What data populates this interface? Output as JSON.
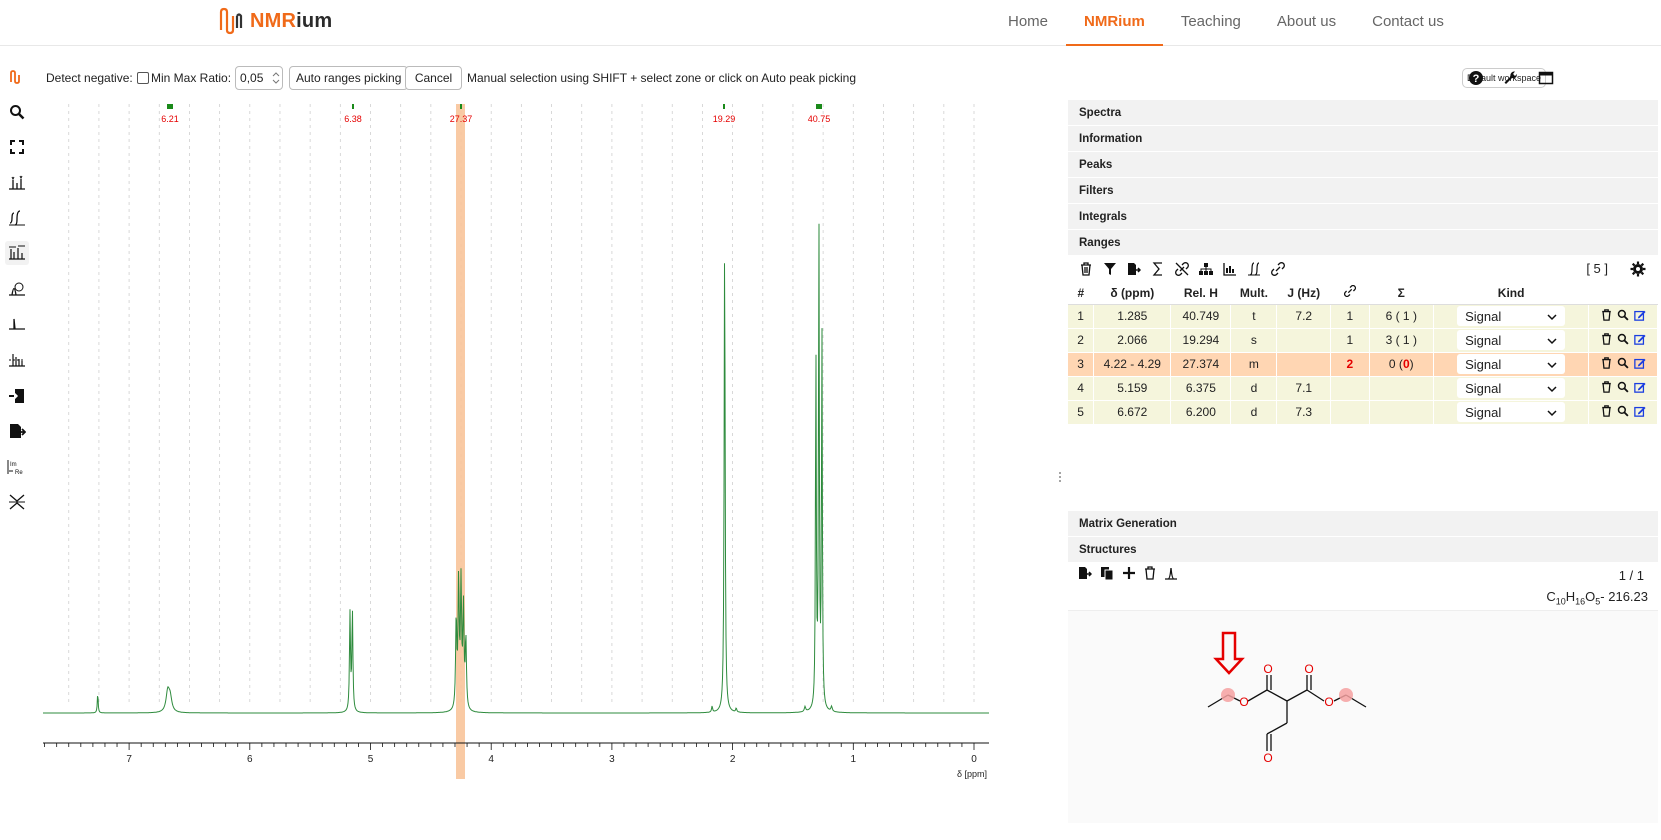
{
  "nav": {
    "logo_text": "NMRium",
    "links": [
      "Home",
      "NMRium",
      "Teaching",
      "About us",
      "Contact us"
    ],
    "active": "NMRium"
  },
  "toolbar": {
    "detect_negative_label": "Detect negative:",
    "min_max_ratio_label": "Min Max Ratio:",
    "min_max_ratio_value": "0,05",
    "auto_ranges_label": "Auto ranges picking",
    "cancel_label": "Cancel",
    "hint": "Manual selection using SHIFT + select zone or click on Auto peak picking",
    "workspace_label": "Default workspace"
  },
  "left_tools": [
    "zoom-icon",
    "fullscreen-icon",
    "peak-picking-icon",
    "integral-icon",
    "range-picking-icon",
    "phase-correction-icon",
    "baseline-correction-icon",
    "multiplet-analysis-icon",
    "import-icon",
    "export-icon",
    "real-imaginary-icon",
    "exclusion-zones-icon"
  ],
  "spectrum": {
    "range_labels": [
      "6.21",
      "6.38",
      "27.37",
      "19.29",
      "40.75"
    ],
    "x_ticks": [
      "7",
      "6",
      "5",
      "4",
      "3",
      "2",
      "1",
      "0"
    ],
    "axis_unit": "δ [ppm]",
    "colors": {
      "line": "#2e8b3d",
      "highlight": "#f8c49a",
      "label": "#e50000",
      "marker": "#1a8a1a"
    }
  },
  "panels": {
    "sections_top": [
      "Spectra",
      "Information",
      "Peaks",
      "Filters",
      "Integrals",
      "Ranges"
    ],
    "range_count": "[ 5 ]",
    "columns": [
      "#",
      "δ (ppm)",
      "Rel. H",
      "Mult.",
      "J (Hz)",
      "🔗",
      "Σ",
      "Kind"
    ],
    "rows": [
      {
        "num": "1",
        "shift": "1.285",
        "relh": "40.749",
        "mult": "t",
        "j": "7.2",
        "link": "1",
        "sigma": "6 ( 1 )",
        "kind": "Signal"
      },
      {
        "num": "2",
        "shift": "2.066",
        "relh": "19.294",
        "mult": "s",
        "j": "",
        "link": "1",
        "sigma": "3 ( 1 )",
        "kind": "Signal"
      },
      {
        "num": "3",
        "shift": "4.22 - 4.29",
        "relh": "27.374",
        "mult": "m",
        "j": "",
        "link": "2",
        "sigma": "0 (0)",
        "kind": "Signal"
      },
      {
        "num": "4",
        "shift": "5.159",
        "relh": "6.375",
        "mult": "d",
        "j": "7.1",
        "link": "",
        "sigma": "",
        "kind": "Signal"
      },
      {
        "num": "5",
        "shift": "6.672",
        "relh": "6.200",
        "mult": "d",
        "j": "7.3",
        "link": "",
        "sigma": "",
        "kind": "Signal"
      }
    ],
    "sections_bottom": [
      "Matrix Generation",
      "Structures"
    ],
    "structure_pager": "1 / 1",
    "formula": "C10H16O5",
    "mass": "- 216.23",
    "atom_O": "O"
  }
}
